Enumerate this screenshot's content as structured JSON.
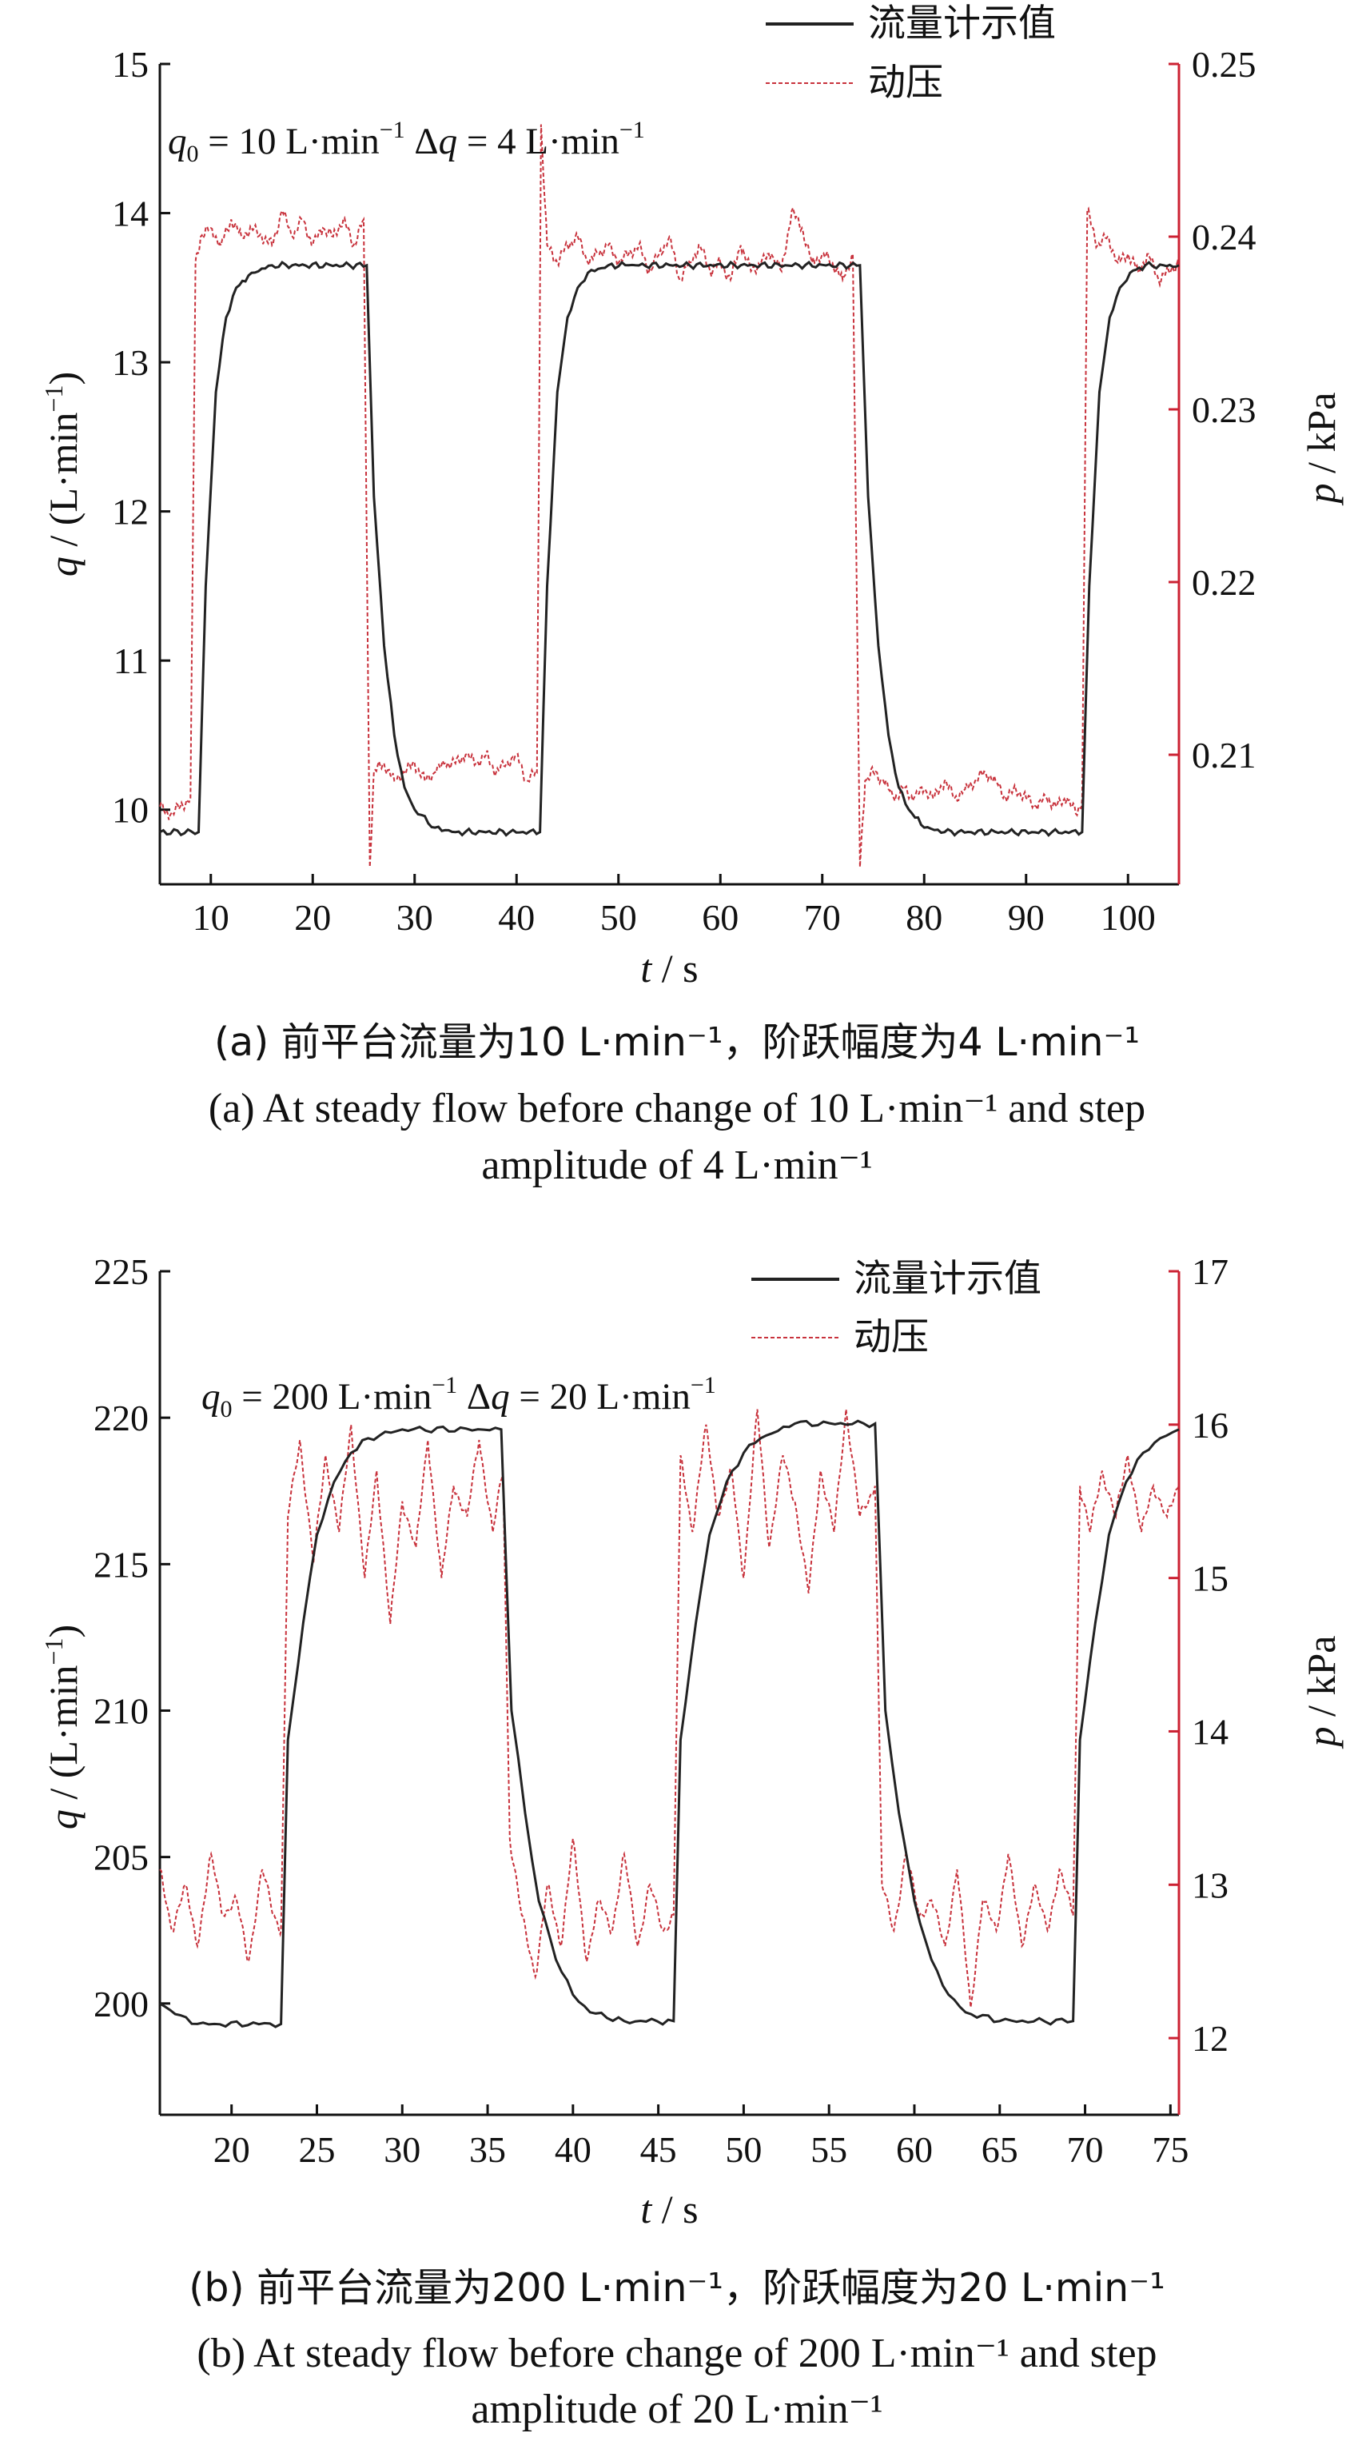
{
  "chart_data": [
    {
      "type": "line",
      "legend": [
        "流量计示值",
        "动压"
      ],
      "legend_position": "top-right",
      "annotation": [
        "q",
        "0",
        " = 10 L·min",
        "−1",
        "Δq",
        " = 4 L·min",
        "−1"
      ],
      "xlabel": [
        "t",
        " / s"
      ],
      "ylabel": [
        "q",
        " / (L·min",
        "−1",
        ")"
      ],
      "y2label": [
        "p",
        " / kPa"
      ],
      "xlim": [
        5,
        105
      ],
      "ylim": [
        9.5,
        15
      ],
      "y2lim": [
        0.2025,
        0.25
      ],
      "xticks": [
        10,
        20,
        30,
        40,
        50,
        60,
        70,
        80,
        90,
        100
      ],
      "yticks": [
        10,
        11,
        12,
        13,
        14,
        15
      ],
      "y2ticks": [
        0.21,
        0.22,
        0.23,
        0.24,
        0.25
      ],
      "y2tick_labels": [
        "0.21",
        "0.22",
        "0.23",
        "0.24",
        "0.25"
      ],
      "grid": false,
      "colors": {
        "flow": "#222222",
        "pressure": "#c8323c",
        "right_axis": "#cc2233"
      },
      "series": [
        {
          "name": "流量计示值",
          "axis": "left",
          "x": [
            5,
            8.8,
            9.5,
            10.5,
            11.5,
            12.5,
            14,
            16,
            25.3,
            26,
            27,
            28,
            29,
            30,
            32,
            34,
            42.3,
            43,
            44,
            45,
            46,
            47,
            49,
            51,
            73.7,
            74.5,
            75.5,
            76.5,
            77.5,
            78.5,
            80,
            82,
            95.5,
            96.2,
            97.2,
            98.2,
            99.2,
            100.2,
            101.7,
            103.5,
            105
          ],
          "y": [
            9.85,
            9.85,
            11.5,
            12.8,
            13.3,
            13.5,
            13.6,
            13.65,
            13.65,
            12.1,
            11.1,
            10.5,
            10.15,
            10,
            9.88,
            9.85,
            9.85,
            11.5,
            12.8,
            13.3,
            13.5,
            13.6,
            13.65,
            13.65,
            13.65,
            12.1,
            11.1,
            10.5,
            10.15,
            10,
            9.88,
            9.85,
            9.85,
            11.5,
            12.8,
            13.3,
            13.5,
            13.6,
            13.65,
            13.65,
            13.65
          ]
        },
        {
          "name": "动压",
          "axis": "right",
          "x": [
            5,
            6,
            7,
            8,
            8.5,
            9,
            10,
            11,
            12,
            13,
            14,
            15,
            16,
            17,
            18,
            19,
            20,
            21,
            22,
            23,
            24,
            25,
            25.6,
            26,
            27,
            28,
            29,
            30,
            31,
            32,
            33,
            34,
            35,
            36,
            37,
            38,
            39,
            40,
            41,
            42,
            42.4,
            43,
            44,
            45,
            46,
            47,
            48,
            49,
            50,
            51,
            52,
            53,
            54,
            55,
            56,
            57,
            58,
            59,
            60,
            61,
            62,
            63,
            64,
            65,
            66,
            67,
            68,
            69,
            70,
            71,
            72,
            73,
            73.7,
            74.2,
            75,
            76,
            77,
            78,
            79,
            80,
            81,
            82,
            83,
            84,
            85,
            86,
            87,
            88,
            89,
            90,
            91,
            92,
            93,
            94,
            95,
            95.5,
            96,
            97,
            98,
            99,
            100,
            101,
            102,
            103,
            104,
            105
          ],
          "y": [
            0.207,
            0.2065,
            0.207,
            0.2075,
            0.2385,
            0.24,
            0.2405,
            0.2395,
            0.241,
            0.24,
            0.2405,
            0.24,
            0.2395,
            0.2415,
            0.24,
            0.241,
            0.2395,
            0.2405,
            0.24,
            0.241,
            0.2395,
            0.241,
            0.2035,
            0.209,
            0.2095,
            0.2085,
            0.209,
            0.2095,
            0.2085,
            0.209,
            0.2095,
            0.2095,
            0.21,
            0.2095,
            0.21,
            0.209,
            0.2095,
            0.21,
            0.2085,
            0.209,
            0.2465,
            0.2395,
            0.2385,
            0.2395,
            0.24,
            0.2385,
            0.239,
            0.2395,
            0.2385,
            0.239,
            0.2395,
            0.238,
            0.239,
            0.24,
            0.2375,
            0.2385,
            0.2395,
            0.238,
            0.2385,
            0.2375,
            0.2395,
            0.238,
            0.2385,
            0.239,
            0.238,
            0.2415,
            0.2405,
            0.2385,
            0.239,
            0.2385,
            0.2375,
            0.239,
            0.2035,
            0.2085,
            0.209,
            0.2085,
            0.2075,
            0.208,
            0.2075,
            0.208,
            0.2075,
            0.2085,
            0.2075,
            0.208,
            0.2085,
            0.209,
            0.2085,
            0.2075,
            0.208,
            0.2075,
            0.207,
            0.2075,
            0.207,
            0.2075,
            0.2065,
            0.2075,
            0.2415,
            0.2395,
            0.24,
            0.2385,
            0.239,
            0.238,
            0.239,
            0.2375,
            0.238,
            0.2385
          ]
        }
      ]
    },
    {
      "type": "line",
      "legend": [
        "流量计示值",
        "动压"
      ],
      "legend_position": "top-right",
      "annotation": [
        "q",
        "0",
        " = 200 L·min",
        "−1",
        " Δq",
        " = 20 L·min",
        "−1"
      ],
      "xlabel": [
        "t",
        " / s"
      ],
      "ylabel": [
        "q",
        " / (L·min",
        "−1",
        ")"
      ],
      "y2label": [
        "p",
        " / kPa"
      ],
      "xlim": [
        15.8,
        75.5
      ],
      "ylim": [
        196.2,
        225
      ],
      "y2lim": [
        11.5,
        17
      ],
      "xticks": [
        20,
        25,
        30,
        35,
        40,
        45,
        50,
        55,
        60,
        65,
        70,
        75
      ],
      "yticks": [
        200,
        205,
        210,
        215,
        220,
        225
      ],
      "y2ticks": [
        12,
        13,
        14,
        15,
        16,
        17
      ],
      "y2tick_labels": [
        "12",
        "13",
        "14",
        "15",
        "16",
        "17"
      ],
      "grid": false,
      "colors": {
        "flow": "#222222",
        "pressure": "#c8323c",
        "right_axis": "#cc2233"
      },
      "series": [
        {
          "name": "流量计示值",
          "axis": "left",
          "x": [
            15.8,
            17,
            18,
            19,
            22.9,
            23.3,
            24.2,
            25,
            26,
            27,
            28,
            30,
            35.8,
            36.4,
            37.2,
            38,
            39,
            40,
            41,
            43,
            45.9,
            46.3,
            47.2,
            48,
            49,
            50,
            51,
            53,
            57.7,
            58.3,
            59.1,
            60,
            61,
            62,
            63,
            65,
            69.3,
            69.7,
            70.6,
            71.4,
            72.4,
            73.4,
            74.4,
            75.5
          ],
          "y": [
            200,
            199.6,
            199.3,
            199.3,
            199.3,
            209,
            213,
            216,
            217.8,
            218.8,
            219.3,
            219.6,
            219.6,
            210,
            206.5,
            203.5,
            201.5,
            200.3,
            199.7,
            199.4,
            199.4,
            209,
            213,
            216,
            217.8,
            218.8,
            219.3,
            219.8,
            219.8,
            210,
            206.5,
            203.5,
            201.5,
            200.3,
            199.7,
            199.4,
            199.4,
            209,
            213,
            216,
            217.8,
            218.8,
            219.3,
            219.6
          ]
        },
        {
          "name": "动压",
          "axis": "right",
          "x": [
            15.8,
            16.5,
            17.3,
            18,
            18.8,
            19.5,
            20.3,
            21,
            21.8,
            22.5,
            22.9,
            23.3,
            24,
            24.8,
            25.5,
            26.3,
            27,
            27.8,
            28.5,
            29.3,
            30,
            30.8,
            31.5,
            32.3,
            33,
            33.8,
            34.5,
            35.3,
            35.9,
            36.3,
            37,
            37.8,
            38.5,
            39.3,
            40,
            40.8,
            41.5,
            42.3,
            43,
            43.8,
            44.5,
            45.3,
            45.9,
            46.3,
            47,
            47.8,
            48.5,
            49.3,
            50,
            50.8,
            51.5,
            52.3,
            53,
            53.8,
            54.5,
            55.3,
            56,
            56.8,
            57.7,
            58.1,
            58.8,
            59.5,
            60.3,
            61,
            61.8,
            62.5,
            63.3,
            64,
            64.8,
            65.5,
            66.3,
            67,
            67.8,
            68.5,
            69.3,
            69.7,
            70.3,
            71,
            71.8,
            72.5,
            73.3,
            74,
            74.8,
            75.5
          ],
          "y": [
            13.1,
            12.7,
            13.0,
            12.6,
            13.2,
            12.8,
            12.9,
            12.5,
            13.1,
            12.8,
            12.7,
            15.4,
            15.9,
            15.1,
            15.8,
            15.3,
            16.0,
            15.0,
            15.7,
            14.7,
            15.5,
            15.2,
            15.9,
            15.0,
            15.6,
            15.4,
            15.9,
            15.3,
            15.7,
            13.3,
            12.8,
            12.4,
            13.0,
            12.6,
            13.3,
            12.5,
            12.9,
            12.7,
            13.2,
            12.6,
            13.0,
            12.7,
            12.8,
            15.8,
            15.3,
            16.0,
            15.4,
            15.7,
            15.0,
            16.1,
            15.2,
            15.8,
            15.5,
            14.9,
            15.7,
            15.3,
            16.1,
            15.4,
            15.6,
            13.0,
            12.7,
            13.2,
            12.8,
            12.9,
            12.6,
            13.1,
            12.2,
            12.9,
            12.7,
            13.2,
            12.6,
            13.0,
            12.7,
            13.1,
            12.8,
            15.6,
            15.3,
            15.7,
            15.4,
            15.8,
            15.3,
            15.6,
            15.4,
            15.6
          ]
        }
      ]
    }
  ],
  "captions": {
    "a_cn": "(a) 前平台流量为10 L·min⁻¹，阶跃幅度为4 L·min⁻¹",
    "a_en_1": "(a) At steady flow before change of 10 L·min⁻¹ and step",
    "a_en_2": "amplitude of 4 L·min⁻¹",
    "b_cn": "(b) 前平台流量为200 L·min⁻¹，阶跃幅度为20 L·min⁻¹",
    "b_en_1": "(b) At steady flow before change of 200 L·min⁻¹ and step",
    "b_en_2": "amplitude of 20 L·min⁻¹"
  }
}
